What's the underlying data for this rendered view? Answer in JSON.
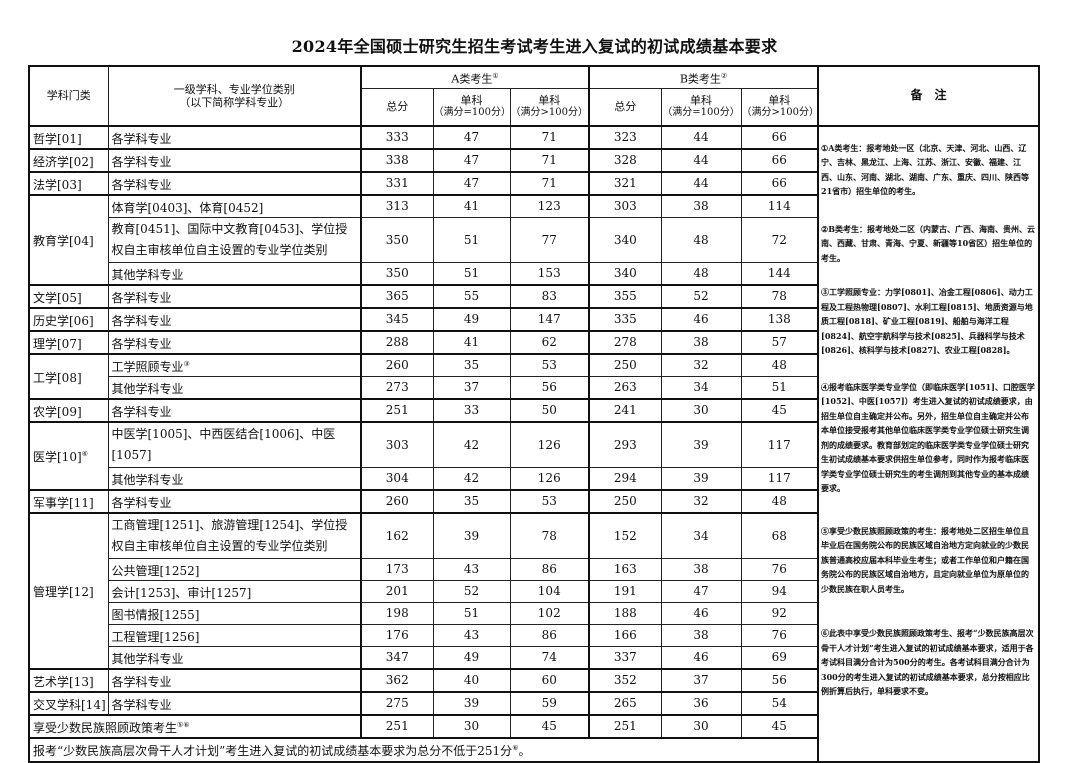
{
  "title": "2024年全国硕士研究生招生考试考生进入复试的初试成绩基本要求",
  "header": {
    "category": "学科门类",
    "major_line1": "一级学科、专业学位类别",
    "major_line2": "（以下简称学科专业）",
    "group_a": "A类考生",
    "group_a_sup": "①",
    "group_b": "B类考生",
    "group_b_sup": "②",
    "total": "总分",
    "single": "单科",
    "single_le100": "（满分=100分）",
    "single_gt100": "（满分>100分）",
    "remarks": "备　注"
  },
  "groups": [
    {
      "category": "哲学[01]",
      "sup": "",
      "rows": [
        {
          "major": "各学科专业",
          "sup": "",
          "a": [
            333,
            47,
            71
          ],
          "b": [
            323,
            44,
            66
          ]
        }
      ]
    },
    {
      "category": "经济学[02]",
      "sup": "",
      "rows": [
        {
          "major": "各学科专业",
          "sup": "",
          "a": [
            338,
            47,
            71
          ],
          "b": [
            328,
            44,
            66
          ]
        }
      ]
    },
    {
      "category": "法学[03]",
      "sup": "",
      "rows": [
        {
          "major": "各学科专业",
          "sup": "",
          "a": [
            331,
            47,
            71
          ],
          "b": [
            321,
            44,
            66
          ]
        }
      ]
    },
    {
      "category": "教育学[04]",
      "sup": "",
      "rows": [
        {
          "major": "体育学[0403]、体育[0452]",
          "sup": "",
          "a": [
            313,
            41,
            123
          ],
          "b": [
            303,
            38,
            114
          ]
        },
        {
          "major": "教育[0451]、国际中文教育[0453]、学位授权自主审核单位自主设置的专业学位类别",
          "sup": "",
          "a": [
            350,
            51,
            77
          ],
          "b": [
            340,
            48,
            72
          ]
        },
        {
          "major": "其他学科专业",
          "sup": "",
          "a": [
            350,
            51,
            153
          ],
          "b": [
            340,
            48,
            144
          ]
        }
      ]
    },
    {
      "category": "文学[05]",
      "sup": "",
      "rows": [
        {
          "major": "各学科专业",
          "sup": "",
          "a": [
            365,
            55,
            83
          ],
          "b": [
            355,
            52,
            78
          ]
        }
      ]
    },
    {
      "category": "历史学[06]",
      "sup": "",
      "rows": [
        {
          "major": "各学科专业",
          "sup": "",
          "a": [
            345,
            49,
            147
          ],
          "b": [
            335,
            46,
            138
          ]
        }
      ]
    },
    {
      "category": "理学[07]",
      "sup": "",
      "rows": [
        {
          "major": "各学科专业",
          "sup": "",
          "a": [
            288,
            41,
            62
          ],
          "b": [
            278,
            38,
            57
          ]
        }
      ]
    },
    {
      "category": "工学[08]",
      "sup": "",
      "rows": [
        {
          "major": "工学照顾专业",
          "sup": "③",
          "a": [
            260,
            35,
            53
          ],
          "b": [
            250,
            32,
            48
          ]
        },
        {
          "major": "其他学科专业",
          "sup": "",
          "a": [
            273,
            37,
            56
          ],
          "b": [
            263,
            34,
            51
          ]
        }
      ]
    },
    {
      "category": "农学[09]",
      "sup": "",
      "rows": [
        {
          "major": "各学科专业",
          "sup": "",
          "a": [
            251,
            33,
            50
          ],
          "b": [
            241,
            30,
            45
          ]
        }
      ]
    },
    {
      "category": "医学[10]",
      "sup": "④",
      "rows": [
        {
          "major": "中医学[1005]、中西医结合[1006]、中医[1057]",
          "sup": "",
          "a": [
            303,
            42,
            126
          ],
          "b": [
            293,
            39,
            117
          ]
        },
        {
          "major": "其他学科专业",
          "sup": "",
          "a": [
            304,
            42,
            126
          ],
          "b": [
            294,
            39,
            117
          ]
        }
      ]
    },
    {
      "category": "军事学[11]",
      "sup": "",
      "rows": [
        {
          "major": "各学科专业",
          "sup": "",
          "a": [
            260,
            35,
            53
          ],
          "b": [
            250,
            32,
            48
          ]
        }
      ]
    },
    {
      "category": "管理学[12]",
      "sup": "",
      "rows": [
        {
          "major": "工商管理[1251]、旅游管理[1254]、学位授权自主审核单位自主设置的专业学位类别",
          "sup": "",
          "a": [
            162,
            39,
            78
          ],
          "b": [
            152,
            34,
            68
          ]
        },
        {
          "major": "公共管理[1252]",
          "sup": "",
          "a": [
            173,
            43,
            86
          ],
          "b": [
            163,
            38,
            76
          ]
        },
        {
          "major": "会计[1253]、审计[1257]",
          "sup": "",
          "a": [
            201,
            52,
            104
          ],
          "b": [
            191,
            47,
            94
          ]
        },
        {
          "major": "图书情报[1255]",
          "sup": "",
          "a": [
            198,
            51,
            102
          ],
          "b": [
            188,
            46,
            92
          ]
        },
        {
          "major": "工程管理[1256]",
          "sup": "",
          "a": [
            176,
            43,
            86
          ],
          "b": [
            166,
            38,
            76
          ]
        },
        {
          "major": "其他学科专业",
          "sup": "",
          "a": [
            347,
            49,
            74
          ],
          "b": [
            337,
            46,
            69
          ]
        }
      ]
    },
    {
      "category": "艺术学[13]",
      "sup": "",
      "rows": [
        {
          "major": "各学科专业",
          "sup": "",
          "a": [
            362,
            40,
            60
          ],
          "b": [
            352,
            37,
            56
          ]
        }
      ]
    },
    {
      "category": "交叉学科[14]",
      "sup": "",
      "rows": [
        {
          "major": "各学科专业",
          "sup": "",
          "a": [
            275,
            39,
            59
          ],
          "b": [
            265,
            36,
            54
          ]
        }
      ]
    }
  ],
  "minority": {
    "label": "享受少数民族照顾政策考生",
    "sup": "⑤⑥",
    "a": [
      251,
      30,
      45
    ],
    "b": [
      251,
      30,
      45
    ]
  },
  "footer": {
    "text": "报考“少数民族高层次骨干人才计划”考生进入复试的初试成绩基本要求为总分不低于251分",
    "sup": "⑥",
    "end": "。"
  },
  "remarks": [
    "①A类考生：报考地处一区（北京、天津、河北、山西、辽宁、吉林、黑龙江、上海、江苏、浙江、安徽、福建、江西、山东、河南、湖北、湖南、广东、重庆、四川、陕西等21省市）招生单位的考生。",
    "②B类考生：报考地处二区（内蒙古、广西、海南、贵州、云南、西藏、甘肃、青海、宁夏、新疆等10省区）招生单位的考生。",
    "③工学照顾专业：力学[0801]、冶金工程[0806]、动力工程及工程热物理[0807]、水利工程[0815]、地质资源与地质工程[0818]、矿业工程[0819]、船舶与海洋工程[0824]、航空宇航科学与技术[0825]、兵器科学与技术[0826]、核科学与技术[0827]、农业工程[0828]。",
    "④报考临床医学类专业学位（即临床医学[1051]、口腔医学[1052]、中医[1057]）考生进入复试的初试成绩要求，由招生单位自主确定并公布。另外，招生单位自主确定并公布本单位接受报考其他单位临床医学类专业学位硕士研究生调剂的成绩要求。教育部划定的临床医学类专业学位硕士研究生初试成绩基本要求供招生单位参考，同时作为报考临床医学类专业学位硕士研究生的考生调剂到其他专业的基本成绩要求。",
    "⑤享受少数民族照顾政策的考生：报考地处二区招生单位且毕业后在国务院公布的民族区域自治地方定向就业的少数民族普通高校应届本科毕业生考生；或者工作单位和户籍在国务院公布的民族区域自治地方，且定向就业单位为原单位的少数民族在职人员考生。",
    "⑥此表中享受少数民族照顾政策考生、报考“少数民族高层次骨干人才计划”考生进入复试的初试成绩基本要求，适用于各考试科目满分合计为500分的考生。各考试科目满分合计为300分的考生进入复试的初试成绩基本要求，总分按相应比例折算后执行，单科要求不变。"
  ]
}
